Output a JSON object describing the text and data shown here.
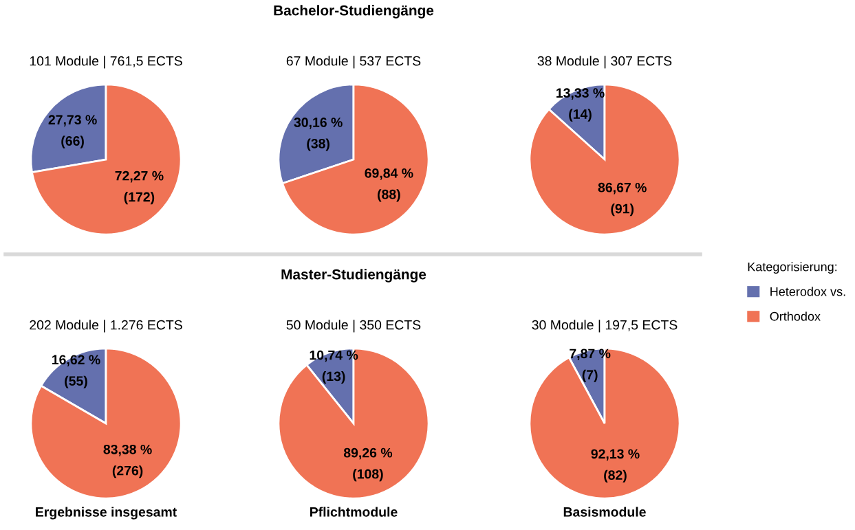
{
  "chart_data": [
    {
      "type": "pie",
      "title": "101 Module | 761,5 ECTS",
      "categories": [
        "Heterodox vs.",
        "Orthodox"
      ],
      "values": [
        27.73,
        72.27
      ],
      "colors": [
        "#6470ae",
        "#f07355"
      ],
      "value_labels": [
        "27,73 %\n(66)",
        "72,27 %\n(172)"
      ],
      "legend_title": "Kategorisierung:",
      "legend": "right"
    },
    {
      "type": "pie",
      "title": "67 Module | 537 ECTS",
      "categories": [
        null,
        null
      ],
      "values": [
        30.16,
        69.84
      ],
      "colors": [
        "#6470ae",
        "#f07355"
      ],
      "value_labels": [
        "30,16 %\n(38)",
        "69,84 %\n(88)"
      ],
      "annotations": [
        "Bachelor-Studiengänge"
      ]
    },
    {
      "type": "pie",
      "title": "38 Module | 307 ECTS",
      "categories": [
        null,
        null
      ],
      "values": [
        13.33,
        86.67
      ],
      "colors": [
        "#6470ae",
        "#f07355"
      ],
      "value_labels": [
        "13,33 %\n(14)",
        "86,67 %\n(91)"
      ]
    },
    {
      "type": "pie",
      "title": "202 Module | 1.276 ECTS",
      "xlabel": "Ergebnisse insgesamt",
      "categories": [
        null,
        null
      ],
      "values": [
        16.62,
        83.38
      ],
      "colors": [
        "#6470ae",
        "#f07355"
      ],
      "value_labels": [
        "16,62 %\n(55)",
        "83,38 %\n(276)"
      ]
    },
    {
      "type": "pie",
      "title": "50 Module | 350 ECTS",
      "xlabel": "Pflichtmodule",
      "categories": [
        null,
        null
      ],
      "values": [
        10.74,
        89.26
      ],
      "colors": [
        "#6470ae",
        "#f07355"
      ],
      "value_labels": [
        "10,74 %\n(13)",
        "89,26 %\n(108)"
      ],
      "annotations": [
        "Master-Studiengänge"
      ]
    },
    {
      "type": "pie",
      "title": "30 Module | 197,5 ECTS",
      "xlabel": "Basismodule",
      "categories": [
        null,
        null
      ],
      "values": [
        7.87,
        92.13
      ],
      "colors": [
        "#6470ae",
        "#f07355"
      ],
      "value_labels": [
        "7,87 %\n(7)",
        "92,13 %\n(82)"
      ]
    }
  ]
}
